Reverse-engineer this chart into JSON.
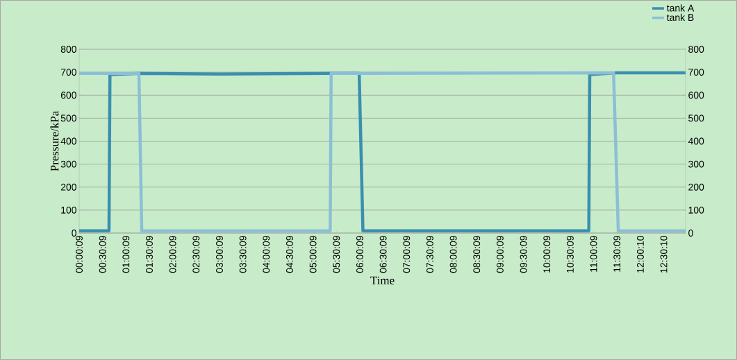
{
  "chart_data": {
    "type": "line",
    "xlabel": "Time",
    "ylabel": "Pressure/kPa",
    "xlim": [
      0.0025,
      12.97
    ],
    "ylim": [
      0,
      800
    ],
    "yticks": [
      0,
      100,
      200,
      300,
      400,
      500,
      600,
      700,
      800
    ],
    "y2lim": [
      0,
      800
    ],
    "y2ticks": [
      0,
      100,
      200,
      300,
      400,
      500,
      600,
      700,
      800
    ],
    "xticks": [
      {
        "value": 0.0025,
        "label": "00:00:09"
      },
      {
        "value": 0.5025,
        "label": "00:30:09"
      },
      {
        "value": 1.0025,
        "label": "01:00:09"
      },
      {
        "value": 1.5025,
        "label": "01:30:09"
      },
      {
        "value": 2.0025,
        "label": "02:00:09"
      },
      {
        "value": 2.5025,
        "label": "02:30:09"
      },
      {
        "value": 3.0025,
        "label": "03:00:09"
      },
      {
        "value": 3.5025,
        "label": "03:30:09"
      },
      {
        "value": 4.0025,
        "label": "04:00:09"
      },
      {
        "value": 4.5025,
        "label": "04:30:09"
      },
      {
        "value": 5.0025,
        "label": "05:00:09"
      },
      {
        "value": 5.5025,
        "label": "05:30:09"
      },
      {
        "value": 6.0025,
        "label": "06:00:09"
      },
      {
        "value": 6.5025,
        "label": "06:30:09"
      },
      {
        "value": 7.0025,
        "label": "07:00:09"
      },
      {
        "value": 7.5025,
        "label": "07:30:09"
      },
      {
        "value": 8.0025,
        "label": "08:00:09"
      },
      {
        "value": 8.5025,
        "label": "08:30:09"
      },
      {
        "value": 9.0025,
        "label": "09:00:09"
      },
      {
        "value": 9.5025,
        "label": "09:30:09"
      },
      {
        "value": 10.0025,
        "label": "10:00:09"
      },
      {
        "value": 10.5025,
        "label": "10:30:09"
      },
      {
        "value": 11.0025,
        "label": "11:00:09"
      },
      {
        "value": 11.5025,
        "label": "11:30:09"
      },
      {
        "value": 12.0028,
        "label": "12:00:10"
      },
      {
        "value": 12.5028,
        "label": "12:30:10"
      }
    ],
    "grid": "y",
    "legend": "top right",
    "marker": "none",
    "line_style": "solid",
    "series": [
      {
        "name": "tank A",
        "color": "#3a8fae",
        "x": [
          0.0025,
          0.64,
          0.66,
          1.3,
          3.0,
          5.9,
          5.99,
          6.07,
          10.9,
          10.92,
          11.5,
          12.97
        ],
        "values": [
          10,
          10,
          690,
          695,
          692,
          696,
          695,
          10,
          10,
          690,
          697,
          697
        ]
      },
      {
        "name": "tank B",
        "color": "#8bbfd6",
        "x": [
          0.0025,
          1.28,
          1.34,
          5.37,
          5.39,
          11.43,
          11.53,
          12.97
        ],
        "values": [
          695,
          695,
          10,
          10,
          695,
          697,
          10,
          10
        ]
      }
    ]
  }
}
